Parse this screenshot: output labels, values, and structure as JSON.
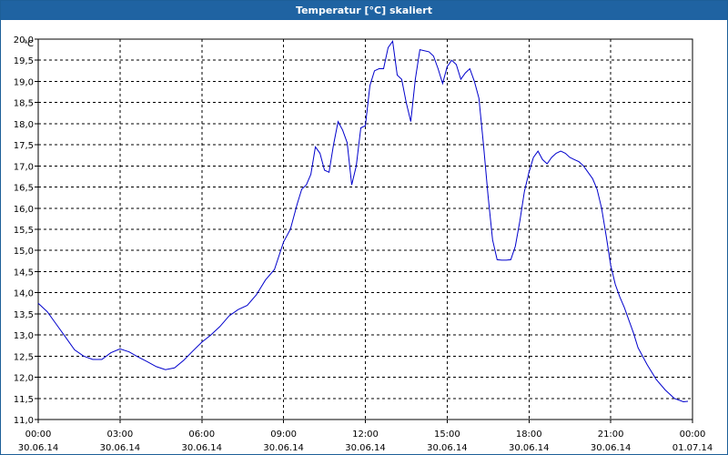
{
  "window": {
    "title": "Temperatur [°C] skaliert"
  },
  "colors": {
    "line": "#0000cc",
    "grid": "#000000",
    "titlebar": "#1f63a2"
  },
  "chart_data": {
    "type": "line",
    "title": "Temperatur [°C] skaliert",
    "ylabel": "°C",
    "xlabel": "",
    "ylim": [
      11.0,
      20.0
    ],
    "xlim": [
      "30.06.14 00:00",
      "01.07.14 00:00"
    ],
    "grid": true,
    "y_ticks": [
      "11,0",
      "11,5",
      "12,0",
      "12,5",
      "13,0",
      "13,5",
      "14,0",
      "14,5",
      "15,0",
      "15,5",
      "16,0",
      "16,5",
      "17,0",
      "17,5",
      "18,0",
      "18,5",
      "19,0",
      "19,5",
      "20,0"
    ],
    "x_ticks": [
      {
        "time": "00:00",
        "date": "30.06.14"
      },
      {
        "time": "03:00",
        "date": "30.06.14"
      },
      {
        "time": "06:00",
        "date": "30.06.14"
      },
      {
        "time": "09:00",
        "date": "30.06.14"
      },
      {
        "time": "12:00",
        "date": "30.06.14"
      },
      {
        "time": "15:00",
        "date": "30.06.14"
      },
      {
        "time": "18:00",
        "date": "30.06.14"
      },
      {
        "time": "21:00",
        "date": "30.06.14"
      },
      {
        "time": "00:00",
        "date": "01.07.14"
      }
    ],
    "series": [
      {
        "points": [
          [
            "00:00",
            13.75
          ],
          [
            "00:20",
            13.55
          ],
          [
            "00:40",
            13.25
          ],
          [
            "01:00",
            12.95
          ],
          [
            "01:20",
            12.65
          ],
          [
            "01:40",
            12.5
          ],
          [
            "02:00",
            12.42
          ],
          [
            "02:20",
            12.42
          ],
          [
            "02:40",
            12.58
          ],
          [
            "03:00",
            12.67
          ],
          [
            "03:20",
            12.6
          ],
          [
            "03:40",
            12.48
          ],
          [
            "04:00",
            12.37
          ],
          [
            "04:20",
            12.25
          ],
          [
            "04:40",
            12.18
          ],
          [
            "05:00",
            12.22
          ],
          [
            "05:20",
            12.4
          ],
          [
            "05:40",
            12.62
          ],
          [
            "06:00",
            12.83
          ],
          [
            "06:20",
            13.0
          ],
          [
            "06:40",
            13.2
          ],
          [
            "07:00",
            13.45
          ],
          [
            "07:20",
            13.6
          ],
          [
            "07:40",
            13.7
          ],
          [
            "08:00",
            13.95
          ],
          [
            "08:20",
            14.3
          ],
          [
            "08:40",
            14.55
          ],
          [
            "09:00",
            15.2
          ],
          [
            "09:15",
            15.5
          ],
          [
            "09:30",
            16.1
          ],
          [
            "09:40",
            16.45
          ],
          [
            "09:50",
            16.55
          ],
          [
            "10:00",
            16.8
          ],
          [
            "10:10",
            17.45
          ],
          [
            "10:20",
            17.3
          ],
          [
            "10:30",
            16.9
          ],
          [
            "10:40",
            16.85
          ],
          [
            "10:50",
            17.5
          ],
          [
            "11:00",
            18.05
          ],
          [
            "11:10",
            17.85
          ],
          [
            "11:20",
            17.55
          ],
          [
            "11:30",
            16.55
          ],
          [
            "11:40",
            17.0
          ],
          [
            "11:50",
            17.9
          ],
          [
            "12:00",
            17.95
          ],
          [
            "12:10",
            18.9
          ],
          [
            "12:20",
            19.25
          ],
          [
            "12:30",
            19.3
          ],
          [
            "12:40",
            19.3
          ],
          [
            "12:50",
            19.8
          ],
          [
            "13:00",
            19.95
          ],
          [
            "13:10",
            19.15
          ],
          [
            "13:20",
            19.05
          ],
          [
            "13:30",
            18.5
          ],
          [
            "13:40",
            18.05
          ],
          [
            "13:50",
            19.05
          ],
          [
            "14:00",
            19.75
          ],
          [
            "14:20",
            19.7
          ],
          [
            "14:30",
            19.6
          ],
          [
            "14:40",
            19.3
          ],
          [
            "14:50",
            18.95
          ],
          [
            "15:00",
            19.35
          ],
          [
            "15:10",
            19.5
          ],
          [
            "15:20",
            19.4
          ],
          [
            "15:30",
            19.05
          ],
          [
            "15:40",
            19.2
          ],
          [
            "15:50",
            19.3
          ],
          [
            "16:00",
            19.0
          ],
          [
            "16:10",
            18.6
          ],
          [
            "16:20",
            17.5
          ],
          [
            "16:30",
            16.3
          ],
          [
            "16:40",
            15.25
          ],
          [
            "16:50",
            14.78
          ],
          [
            "17:00",
            14.77
          ],
          [
            "17:10",
            14.77
          ],
          [
            "17:20",
            14.78
          ],
          [
            "17:30",
            15.1
          ],
          [
            "17:40",
            15.7
          ],
          [
            "17:50",
            16.4
          ],
          [
            "18:00",
            16.85
          ],
          [
            "18:10",
            17.2
          ],
          [
            "18:20",
            17.35
          ],
          [
            "18:30",
            17.15
          ],
          [
            "18:40",
            17.05
          ],
          [
            "18:50",
            17.2
          ],
          [
            "19:00",
            17.3
          ],
          [
            "19:10",
            17.35
          ],
          [
            "19:20",
            17.3
          ],
          [
            "19:30",
            17.2
          ],
          [
            "19:40",
            17.15
          ],
          [
            "19:50",
            17.1
          ],
          [
            "20:00",
            17.0
          ],
          [
            "20:10",
            16.85
          ],
          [
            "20:20",
            16.7
          ],
          [
            "20:30",
            16.45
          ],
          [
            "20:40",
            16.0
          ],
          [
            "20:50",
            15.35
          ],
          [
            "21:00",
            14.65
          ],
          [
            "21:10",
            14.2
          ],
          [
            "21:20",
            13.9
          ],
          [
            "21:30",
            13.65
          ],
          [
            "21:40",
            13.35
          ],
          [
            "21:50",
            13.05
          ],
          [
            "22:00",
            12.7
          ],
          [
            "22:20",
            12.3
          ],
          [
            "22:40",
            11.95
          ],
          [
            "23:00",
            11.7
          ],
          [
            "23:20",
            11.5
          ],
          [
            "23:40",
            11.42
          ],
          [
            "23:50",
            11.43
          ]
        ]
      }
    ]
  }
}
